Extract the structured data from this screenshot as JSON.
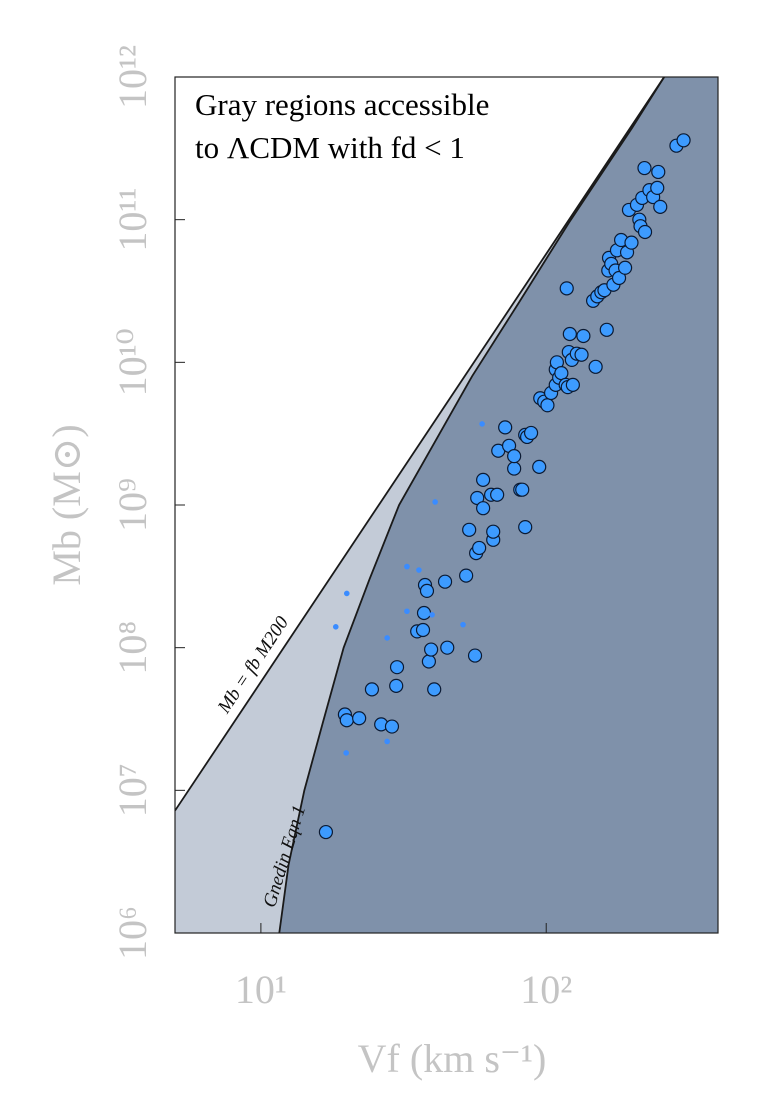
{
  "chart_data": {
    "type": "scatter",
    "xscale": "log",
    "yscale": "log",
    "xlim": [
      5,
      400
    ],
    "ylim": [
      1000000,
      1000000000000
    ],
    "xticks": [
      {
        "value": 10,
        "label": "10¹"
      },
      {
        "value": 100,
        "label": "10²"
      }
    ],
    "yticks": [
      {
        "value": 1000000,
        "label": "10⁶"
      },
      {
        "value": 10000000,
        "label": "10⁷"
      },
      {
        "value": 100000000,
        "label": "10⁸"
      },
      {
        "value": 1000000000,
        "label": "10⁹"
      },
      {
        "value": 10000000000,
        "label": "10¹⁰"
      },
      {
        "value": 100000000000,
        "label": "10¹¹"
      },
      {
        "value": 1000000000000,
        "label": "10¹²"
      }
    ],
    "xlabel": "Vf (km s⁻¹)",
    "ylabel": "Mb (M⊙)",
    "annotation": [
      "Gray regions accessible",
      "to ΛCDM with fd < 1"
    ],
    "lines": [
      {
        "name": "Mb = fb M200",
        "color": "#1a1a1a",
        "fill": "#c3cbd7",
        "x": [
          5,
          259
        ],
        "values": [
          7200000,
          1000000000000
        ]
      },
      {
        "name": "Gnedin Eqn 1",
        "color": "#1a1a1a",
        "fill": "#7f91aa",
        "x": [
          11.6,
          12.5,
          14.2,
          16.5,
          19.5,
          24,
          30.5,
          40,
          55,
          80,
          120,
          200,
          259
        ],
        "values": [
          1000000,
          3000000,
          10000000,
          30000000,
          100000000,
          300000000,
          1000000000,
          2600000000,
          8000000000,
          26000000000,
          95000000000,
          440000000000,
          1000000000000
        ]
      }
    ],
    "series": [
      {
        "color": "#3d9bff",
        "edge": "#0b1a33",
        "size": 6.5,
        "x": [
          16.9,
          19.7,
          20.0,
          22.1,
          24.5,
          26.4,
          28.8,
          29.8,
          30.0,
          35.3,
          37.0,
          37.3,
          37.6,
          38.2,
          38.8,
          39.5,
          40.5,
          44.2,
          45.0,
          52.4,
          56.3,
          53.7,
          56.8,
          58.2,
          57.3,
          60.1,
          60.1,
          64.1,
          65.2,
          65.2,
          67.3,
          67.9,
          71.8,
          74.1,
          77.2,
          77.2,
          81.1,
          84.4,
          84.4,
          82.4,
          85.7,
          88.5,
          94.5,
          95.3,
          98.4,
          101,
          104,
          108,
          108,
          109,
          111,
          113,
          117,
          119,
          120,
          121,
          123,
          124,
          128,
          133,
          135,
          149,
          118,
          146,
          151,
          156,
          160,
          163,
          165,
          166,
          169,
          172,
          175,
          177,
          180,
          183,
          189,
          192,
          195,
          199,
          208,
          212,
          214,
          217,
          222,
          230,
          237,
          245,
          247,
          251,
          286,
          303,
          221
        ],
        "values": [
          5100000,
          34000000,
          31000000,
          32000000,
          51000000,
          29000000,
          28000000,
          54000000,
          73000000,
          130000000,
          133000000,
          175000000,
          275000000,
          250000000,
          80000000,
          97000000,
          51000000,
          290000000,
          100000000,
          320000000,
          88000000,
          670000000,
          460000000,
          500000000,
          1120000000,
          950000000,
          1500000000,
          1180000000,
          570000000,
          650000000,
          1180000000,
          2400000000,
          3500000000,
          2600000000,
          1800000000,
          2200000000,
          1280000000,
          3100000000,
          700000000,
          1280000000,
          3000000000,
          3200000000,
          1850000000,
          5600000000,
          5300000000,
          5000000000,
          6100000000,
          6950000000,
          8900000000,
          10000000000,
          7800000000,
          8400000000,
          6950000000,
          6700000000,
          11800000000,
          15800000000,
          10400000000,
          6950000000,
          11500000000,
          11300000000,
          15300000000,
          9300000000,
          33000000000,
          27000000000,
          29000000000,
          31000000000,
          32000000000,
          16900000000,
          44000000000,
          54000000000,
          49000000000,
          35000000000,
          44000000000,
          61000000000,
          39000000000,
          72000000000,
          46000000000,
          59000000000,
          117000000000,
          69000000000,
          127000000000,
          100000000000,
          90000000000,
          142000000000,
          82000000000,
          161000000000,
          144000000000,
          167000000000,
          216000000000,
          123000000000,
          330000000000,
          360000000000,
          230000000000
        ]
      },
      {
        "color": "#3a8cff",
        "edge": "none",
        "size": 2.8,
        "x": [
          20.0,
          18.3,
          19.9,
          27.7,
          27.7,
          32.5,
          35.8,
          40.8,
          32.5,
          51.1,
          59.6,
          39.8
        ],
        "values": [
          240000000,
          140000000,
          18300000,
          117000000,
          22000000,
          370000000,
          350000000,
          1050000000,
          180000000,
          145000000,
          3700000000,
          170000000
        ]
      }
    ]
  }
}
